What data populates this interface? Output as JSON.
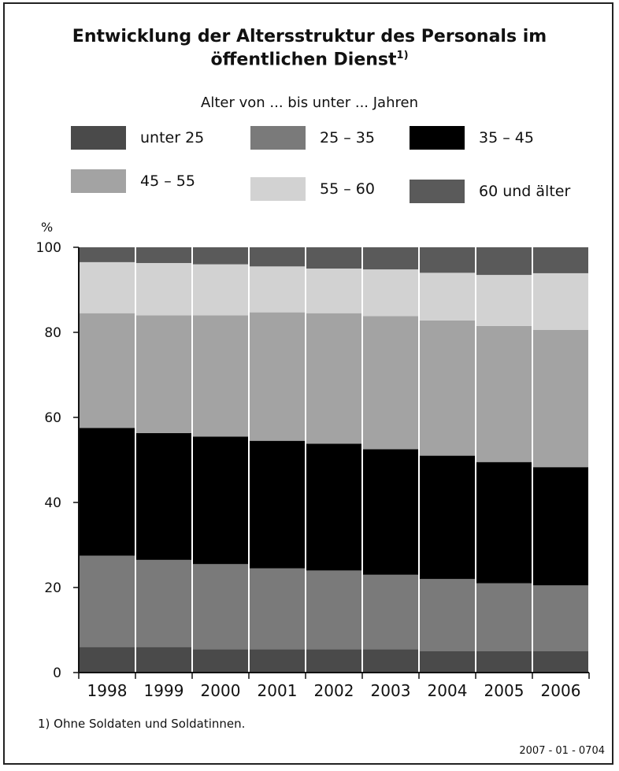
{
  "title_line1": "Entwicklung der Altersstruktur des Personals im",
  "title_line2": "öffentlichen Dienst",
  "title_sup": "1)",
  "legend_title": "Alter von ... bis unter ... Jahren",
  "footnote": "1) Ohne Soldaten und Soldatinnen.",
  "doc_code": "2007 - 01 - 0704",
  "chart_data": {
    "type": "bar",
    "stacked": true,
    "ylabel": "%",
    "ylim": [
      0,
      100
    ],
    "yticks": [
      0,
      20,
      40,
      60,
      80,
      100
    ],
    "grid": false,
    "legend_placement": "top",
    "categories": [
      "1998",
      "1999",
      "2000",
      "2001",
      "2002",
      "2003",
      "2004",
      "2005",
      "2006"
    ],
    "series": [
      {
        "name": "unter 25",
        "color": "#4a4a4a",
        "values": [
          6.0,
          6.0,
          5.5,
          5.5,
          5.5,
          5.5,
          5.0,
          5.0,
          5.0
        ]
      },
      {
        "name": "25 – 35",
        "color": "#7a7a7a",
        "values": [
          21.5,
          20.5,
          20.0,
          19.0,
          18.5,
          17.5,
          17.0,
          16.0,
          15.5
        ]
      },
      {
        "name": "35 – 45",
        "color": "#000000",
        "values": [
          30.0,
          29.8,
          30.0,
          30.0,
          29.8,
          29.5,
          29.0,
          28.5,
          27.8
        ]
      },
      {
        "name": "45 – 55",
        "color": "#a3a3a3",
        "values": [
          27.0,
          27.7,
          28.5,
          30.2,
          30.7,
          31.3,
          31.8,
          32.0,
          32.3
        ]
      },
      {
        "name": "55 – 60",
        "color": "#d2d2d2",
        "values": [
          12.0,
          12.3,
          12.0,
          10.8,
          10.5,
          11.0,
          11.2,
          12.0,
          13.3
        ]
      },
      {
        "name": "60 und älter",
        "color": "#5a5a5a",
        "values": [
          3.5,
          3.7,
          4.0,
          4.5,
          5.0,
          5.2,
          6.0,
          6.5,
          6.1
        ]
      }
    ]
  }
}
